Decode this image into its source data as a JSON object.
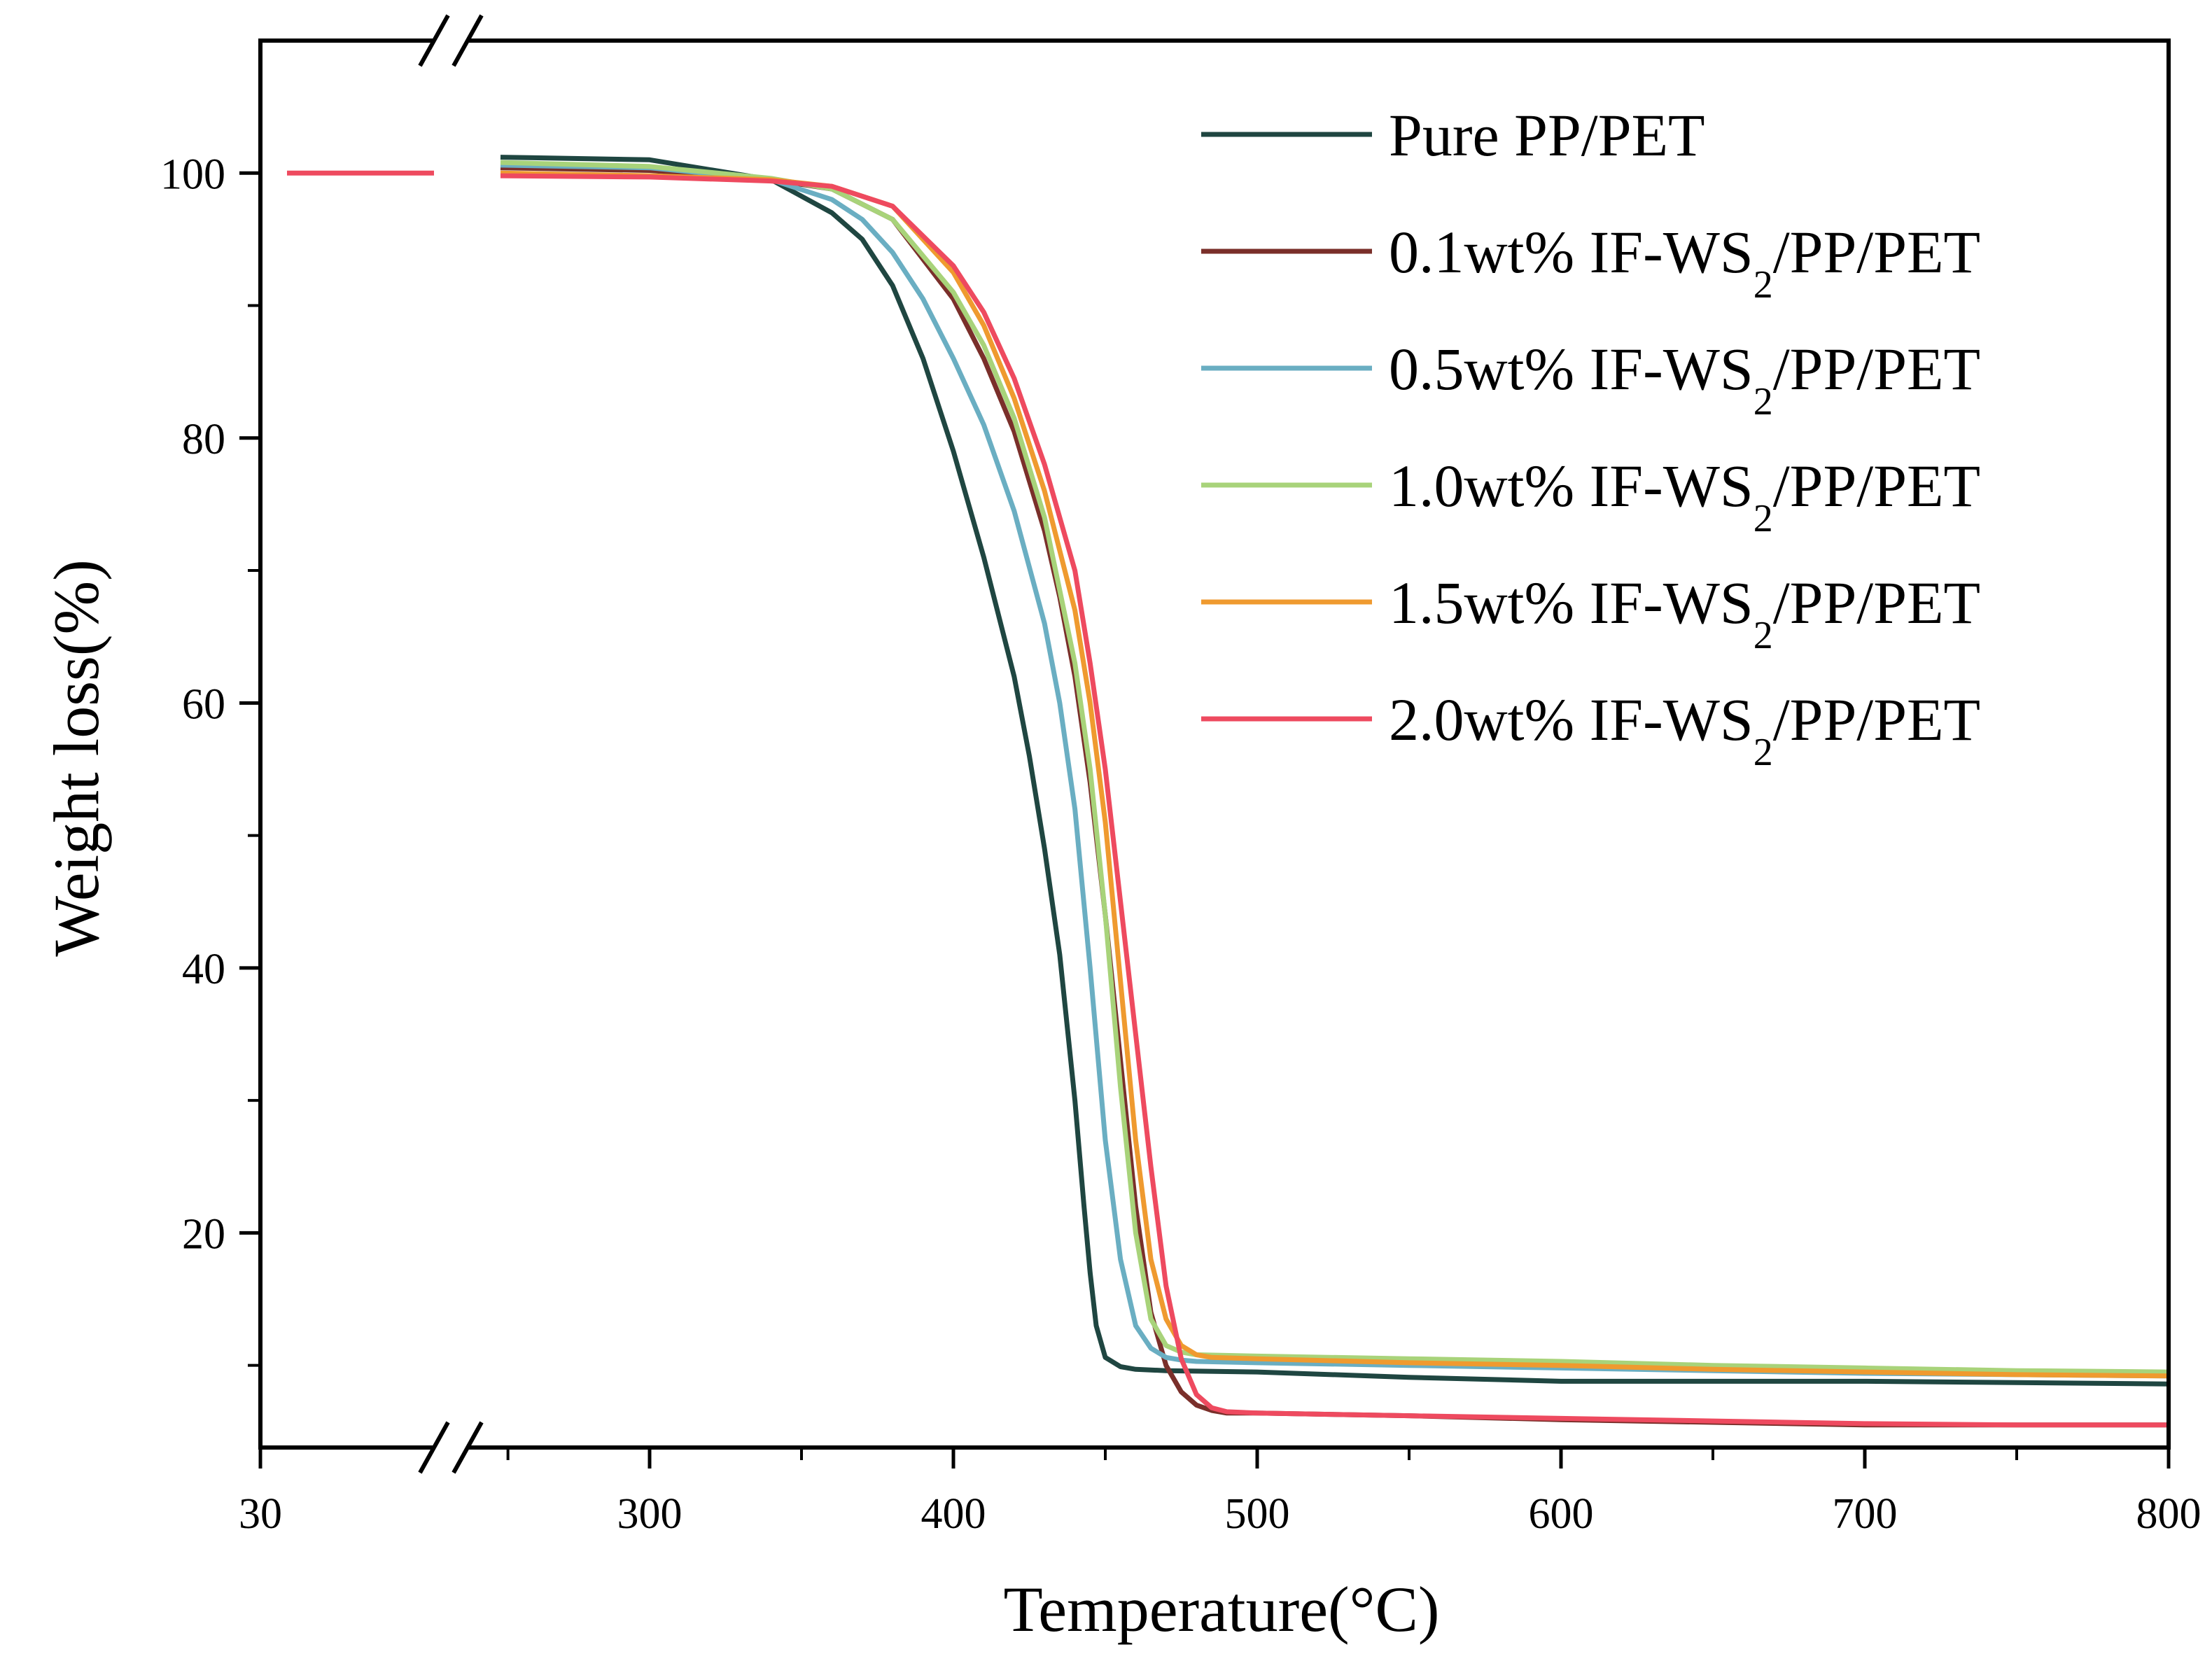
{
  "chart_data": {
    "type": "line",
    "title": "",
    "xlabel": "Temperature(°C)",
    "ylabel": "Weight loss(%)",
    "x_break": {
      "lower_segment": [
        30,
        30
      ],
      "upper_segment_start": 260
    },
    "xlim": [
      30,
      800
    ],
    "ylim": [
      5,
      110
    ],
    "x_ticks": [
      30,
      300,
      400,
      500,
      600,
      700,
      800
    ],
    "x_tick_labels": [
      "30",
      "300",
      "400",
      "500",
      "600",
      "700",
      "800"
    ],
    "y_ticks": [
      20,
      40,
      60,
      80,
      100
    ],
    "y_tick_labels": [
      "20",
      "40",
      "60",
      "80",
      "100"
    ],
    "legend_position": "top-right",
    "series": [
      {
        "name": "Pure      PP/PET",
        "legend_parts": {
          "pre": "Pure      PP/PET",
          "sub": "",
          "post": ""
        },
        "color": "#1f4641",
        "x": [
          260,
          300,
          340,
          360,
          370,
          380,
          390,
          400,
          410,
          420,
          425,
          430,
          435,
          440,
          443,
          445,
          447,
          450,
          455,
          460,
          470,
          500,
          550,
          600,
          650,
          700,
          750,
          800
        ],
        "y": [
          101.2,
          101,
          99.5,
          97,
          95,
          91.5,
          86,
          79,
          71,
          62,
          56,
          49,
          41,
          30,
          22,
          17,
          13,
          10.6,
          9.9,
          9.7,
          9.6,
          9.5,
          9.1,
          8.8,
          8.8,
          8.8,
          8.7,
          8.6
        ]
      },
      {
        "name": "0.1wt% IF-WS2/PP/PET",
        "legend_parts": {
          "pre": "0.1wt% IF-WS",
          "sub": "2",
          "post": "/PP/PET"
        },
        "color": "#7a2f2a",
        "x": [
          260,
          300,
          340,
          360,
          380,
          400,
          410,
          420,
          430,
          435,
          440,
          445,
          450,
          455,
          460,
          465,
          470,
          475,
          480,
          485,
          490,
          500,
          550,
          600,
          650,
          700,
          750,
          800
        ],
        "y": [
          100.4,
          100.2,
          99.5,
          98.8,
          96.5,
          90.5,
          86,
          80.5,
          73,
          68,
          62,
          54,
          44,
          33,
          22,
          14,
          10,
          8,
          7,
          6.6,
          6.4,
          6.4,
          6.2,
          5.9,
          5.7,
          5.5,
          5.5,
          5.5
        ]
      },
      {
        "name": "0.5wt% IF-WS2/PP/PET",
        "legend_parts": {
          "pre": "0.5wt% IF-WS",
          "sub": "2",
          "post": "/PP/PET"
        },
        "color": "#6aaec2",
        "x": [
          260,
          300,
          340,
          360,
          370,
          380,
          390,
          400,
          410,
          420,
          430,
          435,
          440,
          445,
          450,
          455,
          460,
          465,
          470,
          475,
          480,
          500,
          550,
          600,
          650,
          700,
          750,
          800
        ],
        "y": [
          100.6,
          100.4,
          99.5,
          98,
          96.5,
          94,
          90.5,
          86,
          81,
          74.5,
          66,
          60,
          52,
          40,
          27,
          18,
          13,
          11.3,
          10.6,
          10.4,
          10.3,
          10.2,
          10,
          9.8,
          9.6,
          9.4,
          9.3,
          9.2
        ]
      },
      {
        "name": "1.0wt% IF-WS2/PP/PET",
        "legend_parts": {
          "pre": "1.0wt% IF-WS",
          "sub": "2",
          "post": "/PP/PET"
        },
        "color": "#a8d37a",
        "x": [
          260,
          300,
          340,
          360,
          380,
          400,
          410,
          420,
          430,
          440,
          445,
          450,
          455,
          460,
          465,
          470,
          475,
          480,
          500,
          550,
          600,
          650,
          700,
          750,
          800
        ],
        "y": [
          100.8,
          100.5,
          99.6,
          98.8,
          96.5,
          91,
          87,
          81.5,
          74,
          63,
          55,
          44,
          31,
          20,
          13.5,
          11.5,
          11,
          10.8,
          10.7,
          10.5,
          10.3,
          10,
          9.8,
          9.6,
          9.5
        ]
      },
      {
        "name": "1.5wt% IF-WS2/PP/PET",
        "legend_parts": {
          "pre": "1.5wt% IF-WS",
          "sub": "2",
          "post": "/PP/PET"
        },
        "color": "#ef9a2f",
        "x": [
          260,
          300,
          340,
          360,
          380,
          400,
          410,
          420,
          430,
          440,
          445,
          450,
          455,
          460,
          465,
          470,
          475,
          480,
          485,
          500,
          550,
          600,
          650,
          700,
          750,
          800
        ],
        "y": [
          100,
          99.8,
          99.5,
          99,
          97.5,
          92.5,
          88.5,
          83,
          76,
          67,
          60,
          51,
          39,
          27,
          18,
          13.5,
          11.5,
          10.8,
          10.6,
          10.5,
          10.2,
          10,
          9.7,
          9.5,
          9.3,
          9.2
        ]
      },
      {
        "name": "2.0wt% IF-WS2/PP/PET",
        "legend_parts": {
          "pre": "2.0wt% IF-WS",
          "sub": "2",
          "post": "/PP/PET"
        },
        "color": "#ee4a5f",
        "x": [
          30,
          260,
          300,
          340,
          360,
          380,
          400,
          410,
          420,
          430,
          440,
          445,
          450,
          455,
          460,
          465,
          470,
          475,
          480,
          485,
          490,
          500,
          550,
          600,
          650,
          700,
          750,
          800
        ],
        "y": [
          100,
          99.8,
          99.7,
          99.4,
          99,
          97.5,
          93,
          89.5,
          84.5,
          78,
          70,
          63,
          55,
          45,
          35,
          25,
          16,
          10.5,
          7.8,
          6.8,
          6.5,
          6.4,
          6.2,
          6,
          5.8,
          5.6,
          5.5,
          5.5
        ]
      }
    ]
  }
}
